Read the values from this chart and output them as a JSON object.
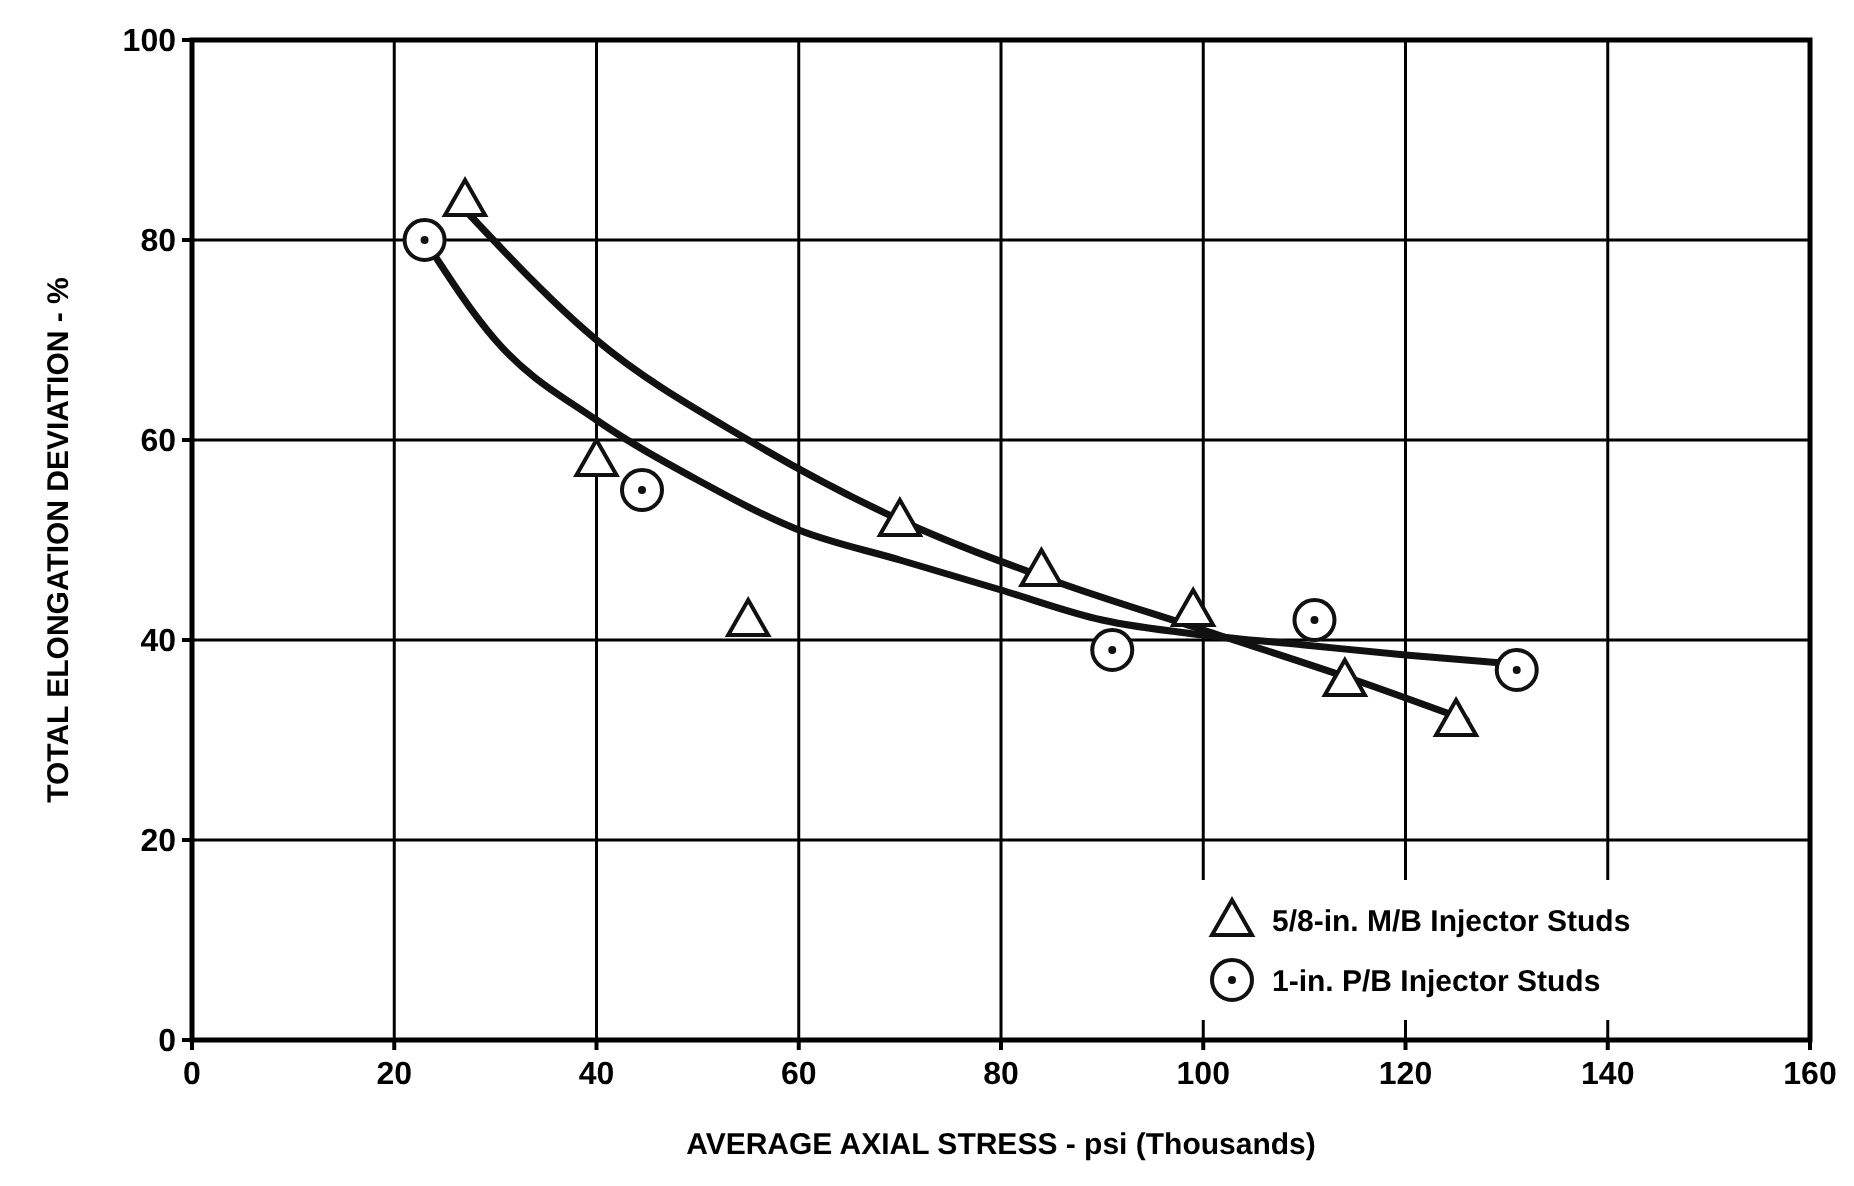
{
  "chart_data": {
    "type": "scatter",
    "xlabel": "AVERAGE AXIAL STRESS - psi (Thousands)",
    "ylabel": "TOTAL ELONGATION DEVIATION - %",
    "xlim": [
      0,
      160
    ],
    "ylim": [
      0,
      100
    ],
    "xticks": [
      0,
      20,
      40,
      60,
      80,
      100,
      120,
      140,
      160
    ],
    "yticks": [
      0,
      20,
      40,
      60,
      80,
      100
    ],
    "grid": true,
    "legend": "bottom right",
    "series": [
      {
        "name": "5/8-in. M/B Injector Studs",
        "marker": "triangle",
        "color": "#111111",
        "x": [
          27,
          40,
          55,
          70,
          84,
          99,
          114,
          125
        ],
        "values": [
          84,
          58,
          42,
          52,
          47,
          43,
          36,
          32
        ]
      },
      {
        "name": "1-in. P/B Injector Studs",
        "marker": "circle",
        "color": "#111111",
        "x": [
          23,
          44.5,
          91,
          111,
          131
        ],
        "values": [
          80,
          55,
          39,
          42,
          37
        ]
      },
      {
        "type": "line",
        "marker": "none",
        "color": "#111111",
        "x": [
          27,
          40,
          55,
          70,
          85,
          100,
          115,
          126
        ],
        "values": [
          83,
          70,
          60,
          52,
          46,
          41,
          36,
          32
        ]
      },
      {
        "type": "line",
        "marker": "none",
        "color": "#111111",
        "x": [
          23,
          30,
          40,
          50,
          60,
          70,
          80,
          90,
          100,
          110,
          120,
          132
        ],
        "values": [
          80,
          70,
          62,
          56,
          51,
          48,
          45,
          42,
          40.5,
          39.5,
          38.5,
          37.5
        ]
      }
    ]
  }
}
